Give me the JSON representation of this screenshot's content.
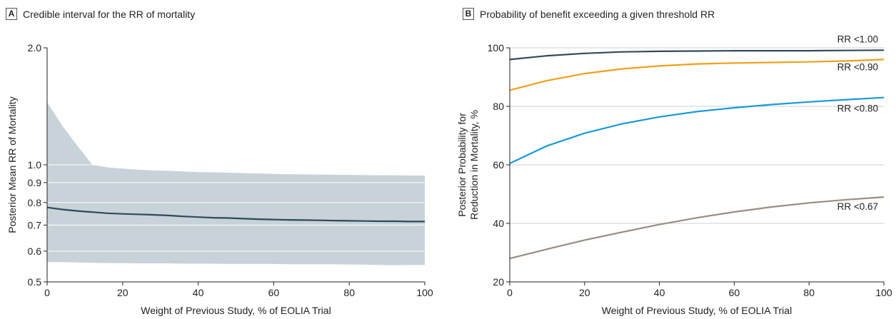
{
  "chart_data": [
    {
      "type": "area",
      "panel_label": "A",
      "title": "Credible interval for the RR of mortality",
      "xlabel": "Weight of Previous Study, % of EOLIA Trial",
      "ylabel": "Posterior Mean RR of Mortality",
      "xlim": [
        0,
        100
      ],
      "ylim": [
        0.5,
        2.0
      ],
      "y_scale": "log",
      "xticks": [
        0,
        20,
        40,
        60,
        80,
        100
      ],
      "yticks": [
        0.5,
        0.6,
        0.7,
        0.8,
        0.9,
        1.0,
        2.0
      ],
      "ytick_labels": [
        "0.5",
        "0.6",
        "0.7",
        "0.8",
        "0.9",
        "1.0",
        "2.0"
      ],
      "grid": true,
      "band_color": "#c8d2d9",
      "line_color": "#2f4a59",
      "x": [
        0,
        4,
        8,
        12,
        16,
        20,
        24,
        28,
        32,
        36,
        40,
        44,
        48,
        52,
        56,
        60,
        64,
        68,
        72,
        76,
        80,
        84,
        88,
        92,
        96,
        100
      ],
      "series": [
        {
          "role": "mean",
          "values": [
            0.777,
            0.768,
            0.761,
            0.756,
            0.751,
            0.748,
            0.746,
            0.744,
            0.741,
            0.737,
            0.734,
            0.731,
            0.73,
            0.727,
            0.725,
            0.723,
            0.722,
            0.721,
            0.72,
            0.719,
            0.718,
            0.717,
            0.716,
            0.716,
            0.715,
            0.715
          ]
        },
        {
          "role": "upper",
          "values": [
            1.45,
            1.26,
            1.12,
            1.0,
            0.985,
            0.978,
            0.972,
            0.968,
            0.965,
            0.962,
            0.958,
            0.957,
            0.955,
            0.952,
            0.95,
            0.948,
            0.946,
            0.945,
            0.944,
            0.943,
            0.942,
            0.941,
            0.94,
            0.94,
            0.939,
            0.938
          ]
        },
        {
          "role": "lower",
          "values": [
            0.562,
            0.562,
            0.561,
            0.56,
            0.559,
            0.559,
            0.558,
            0.558,
            0.558,
            0.557,
            0.557,
            0.557,
            0.556,
            0.556,
            0.556,
            0.556,
            0.555,
            0.555,
            0.555,
            0.555,
            0.554,
            0.554,
            0.553,
            0.552,
            0.553,
            0.553
          ]
        }
      ]
    },
    {
      "type": "line",
      "panel_label": "B",
      "title": "Probability of benefit exceeding a given threshold RR",
      "xlabel": "Weight of Previous Study, % of EOLIA Trial",
      "ylabel_lines": [
        "Posterior Probability for",
        "Reduction in Mortality, %"
      ],
      "xlim": [
        0,
        100
      ],
      "ylim": [
        20,
        100
      ],
      "xticks": [
        0,
        20,
        40,
        60,
        80,
        100
      ],
      "yticks": [
        20,
        40,
        60,
        80,
        100
      ],
      "grid": true,
      "x": [
        0,
        10,
        20,
        30,
        40,
        50,
        60,
        70,
        80,
        90,
        100
      ],
      "series": [
        {
          "name": "RR <1.00",
          "color": "#344a59",
          "values": [
            96.0,
            97.3,
            98.1,
            98.6,
            98.8,
            98.9,
            99.0,
            99.0,
            99.0,
            99.1,
            99.2
          ]
        },
        {
          "name": "RR <0.90",
          "color": "#f0a019",
          "values": [
            85.5,
            88.8,
            91.2,
            92.8,
            93.8,
            94.5,
            94.8,
            95.0,
            95.2,
            95.5,
            96.0
          ]
        },
        {
          "name": "RR <0.80",
          "color": "#1a9ad7",
          "values": [
            60.5,
            66.5,
            70.8,
            74.0,
            76.4,
            78.2,
            79.5,
            80.6,
            81.5,
            82.3,
            83.0
          ]
        },
        {
          "name": "RR <0.67",
          "color": "#9a8c80",
          "values": [
            28.0,
            31.2,
            34.3,
            37.0,
            39.6,
            41.9,
            43.9,
            45.6,
            47.0,
            48.1,
            49.0
          ]
        }
      ]
    }
  ]
}
